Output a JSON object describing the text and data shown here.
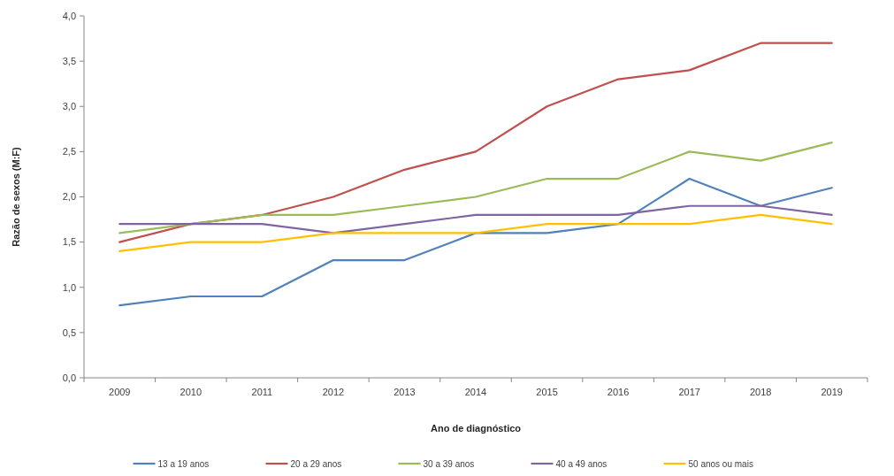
{
  "chart_data": {
    "type": "line",
    "xlabel": "Ano de diagnóstico",
    "ylabel": "Razão de sexos (M:F)",
    "categories": [
      "2009",
      "2010",
      "2011",
      "2012",
      "2013",
      "2014",
      "2015",
      "2016",
      "2017",
      "2018",
      "2019"
    ],
    "series": [
      {
        "name": "13 a 19 anos",
        "color": "#4f81bd",
        "values": [
          0.8,
          0.9,
          0.9,
          1.3,
          1.3,
          1.6,
          1.6,
          1.7,
          2.2,
          1.9,
          2.1
        ]
      },
      {
        "name": "20 a 29 anos",
        "color": "#c0504d",
        "values": [
          1.5,
          1.7,
          1.8,
          2.0,
          2.3,
          2.5,
          3.0,
          3.3,
          3.4,
          3.7,
          3.7
        ]
      },
      {
        "name": "30 a 39 anos",
        "color": "#9bbb59",
        "values": [
          1.6,
          1.7,
          1.8,
          1.8,
          1.9,
          2.0,
          2.2,
          2.2,
          2.5,
          2.4,
          2.6
        ]
      },
      {
        "name": "40 a 49 anos",
        "color": "#8064a2",
        "values": [
          1.7,
          1.7,
          1.7,
          1.6,
          1.7,
          1.8,
          1.8,
          1.8,
          1.9,
          1.9,
          1.8
        ]
      },
      {
        "name": "50 anos ou mais",
        "color": "#ffc000",
        "values": [
          1.4,
          1.5,
          1.5,
          1.6,
          1.6,
          1.6,
          1.7,
          1.7,
          1.7,
          1.8,
          1.7
        ]
      }
    ],
    "ylim": [
      0,
      4
    ],
    "yticks": [
      {
        "value": 0,
        "label": "0,0"
      },
      {
        "value": 0.5,
        "label": "0,5"
      },
      {
        "value": 1,
        "label": "1,0"
      },
      {
        "value": 1.5,
        "label": "1,5"
      },
      {
        "value": 2,
        "label": "2,0"
      },
      {
        "value": 2.5,
        "label": "2,5"
      },
      {
        "value": 3,
        "label": "3,0"
      },
      {
        "value": 3.5,
        "label": "3,5"
      },
      {
        "value": 4,
        "label": "4,0"
      }
    ],
    "grid": false,
    "legend": "bottom",
    "marker": "none",
    "line_style": "solid"
  }
}
